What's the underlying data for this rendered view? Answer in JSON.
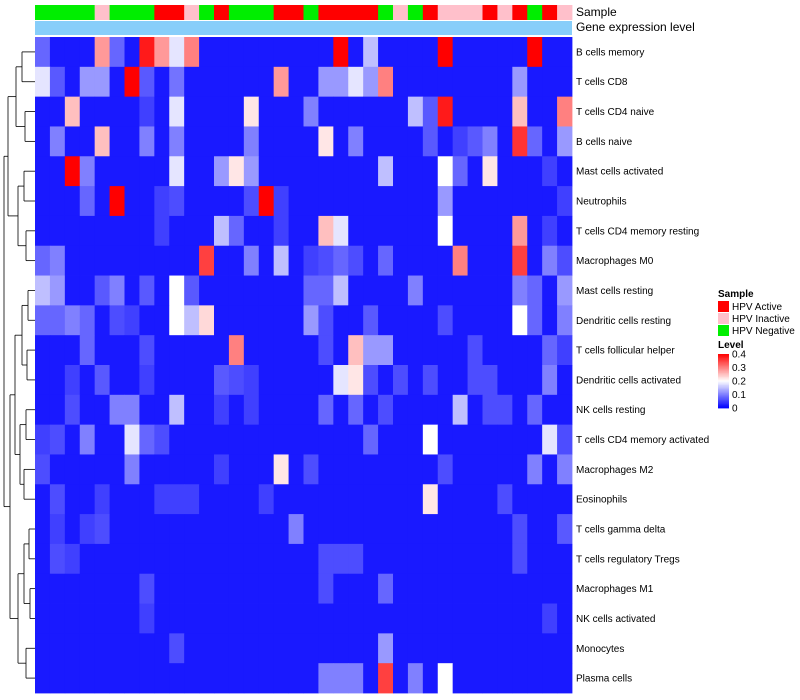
{
  "chart_data": {
    "type": "heatmap",
    "annotation_labels": [
      "Sample",
      "Gene expression level"
    ],
    "rows": [
      "B cells memory",
      "T cells CD8",
      "T cells CD4 naive",
      "B cells naive",
      "Mast cells activated",
      "Neutrophils",
      "T cells CD4 memory resting",
      "Macrophages M0",
      "Mast cells resting",
      "Dendritic cells resting",
      "T cells follicular helper",
      "Dendritic cells activated",
      "NK cells resting",
      "T cells CD4 memory activated",
      "Macrophages M2",
      "Eosinophils",
      "T cells gamma delta",
      "T cells regulatory  Tregs",
      "Macrophages M1",
      "NK cells activated",
      "Monocytes",
      "Plasma cells"
    ],
    "sample_groups": [
      "N",
      "N",
      "N",
      "N",
      "I",
      "N",
      "N",
      "N",
      "A",
      "A",
      "I",
      "N",
      "A",
      "N",
      "N",
      "N",
      "A",
      "A",
      "N",
      "A",
      "A",
      "A",
      "A",
      "N",
      "I",
      "N",
      "A",
      "I",
      "I",
      "I",
      "A",
      "I",
      "A",
      "N",
      "A",
      "I"
    ],
    "values": [
      [
        0.08,
        0.02,
        0.02,
        0.02,
        0.28,
        0.08,
        0.02,
        0.38,
        0.28,
        0.18,
        0.3,
        0.02,
        0.02,
        0.02,
        0.02,
        0.02,
        0.02,
        0.02,
        0.02,
        0.02,
        0.4,
        0.02,
        0.15,
        0.02,
        0.02,
        0.02,
        0.02,
        0.4,
        0.02,
        0.02,
        0.02,
        0.02,
        0.02,
        0.4,
        0.02,
        0.02
      ],
      [
        0.18,
        0.07,
        0.02,
        0.12,
        0.12,
        0.02,
        0.4,
        0.07,
        0.02,
        0.09,
        0.02,
        0.02,
        0.02,
        0.02,
        0.02,
        0.02,
        0.28,
        0.02,
        0.02,
        0.12,
        0.12,
        0.18,
        0.12,
        0.3,
        0.02,
        0.02,
        0.02,
        0.02,
        0.02,
        0.02,
        0.02,
        0.02,
        0.12,
        0.02,
        0.02,
        0.02
      ],
      [
        0.02,
        0.02,
        0.25,
        0.02,
        0.02,
        0.02,
        0.02,
        0.05,
        0.02,
        0.18,
        0.02,
        0.02,
        0.02,
        0.02,
        0.22,
        0.02,
        0.02,
        0.02,
        0.1,
        0.02,
        0.02,
        0.02,
        0.02,
        0.02,
        0.02,
        0.15,
        0.07,
        0.38,
        0.02,
        0.02,
        0.02,
        0.02,
        0.25,
        0.02,
        0.02,
        0.3
      ],
      [
        0.02,
        0.1,
        0.02,
        0.02,
        0.25,
        0.02,
        0.02,
        0.1,
        0.02,
        0.1,
        0.02,
        0.02,
        0.02,
        0.02,
        0.1,
        0.02,
        0.02,
        0.02,
        0.02,
        0.22,
        0.02,
        0.1,
        0.02,
        0.02,
        0.02,
        0.02,
        0.07,
        0.02,
        0.05,
        0.07,
        0.1,
        0.02,
        0.36,
        0.08,
        0.02,
        0.12
      ],
      [
        0.02,
        0.02,
        0.4,
        0.1,
        0.02,
        0.02,
        0.02,
        0.02,
        0.02,
        0.18,
        0.02,
        0.02,
        0.12,
        0.22,
        0.12,
        0.02,
        0.02,
        0.02,
        0.02,
        0.02,
        0.02,
        0.02,
        0.02,
        0.15,
        0.02,
        0.02,
        0.02,
        0.2,
        0.08,
        0.02,
        0.22,
        0.02,
        0.02,
        0.02,
        0.05,
        0.02
      ],
      [
        0.02,
        0.02,
        0.02,
        0.08,
        0.02,
        0.4,
        0.02,
        0.02,
        0.05,
        0.06,
        0.02,
        0.02,
        0.02,
        0.02,
        0.06,
        0.4,
        0.05,
        0.02,
        0.02,
        0.02,
        0.02,
        0.02,
        0.02,
        0.02,
        0.02,
        0.02,
        0.02,
        0.12,
        0.02,
        0.02,
        0.02,
        0.02,
        0.02,
        0.02,
        0.02,
        0.05
      ],
      [
        0.02,
        0.02,
        0.02,
        0.02,
        0.02,
        0.02,
        0.02,
        0.02,
        0.05,
        0.02,
        0.02,
        0.02,
        0.15,
        0.08,
        0.02,
        0.02,
        0.05,
        0.02,
        0.02,
        0.25,
        0.18,
        0.02,
        0.02,
        0.02,
        0.02,
        0.02,
        0.02,
        0.2,
        0.02,
        0.02,
        0.02,
        0.02,
        0.28,
        0.02,
        0.05,
        0.02
      ],
      [
        0.08,
        0.1,
        0.02,
        0.02,
        0.02,
        0.02,
        0.02,
        0.02,
        0.02,
        0.02,
        0.02,
        0.35,
        0.02,
        0.02,
        0.1,
        0.02,
        0.15,
        0.02,
        0.05,
        0.06,
        0.08,
        0.06,
        0.02,
        0.08,
        0.02,
        0.02,
        0.02,
        0.02,
        0.3,
        0.02,
        0.02,
        0.02,
        0.35,
        0.02,
        0.1,
        0.06
      ],
      [
        0.15,
        0.12,
        0.02,
        0.02,
        0.07,
        0.1,
        0.02,
        0.07,
        0.02,
        0.2,
        0.07,
        0.02,
        0.02,
        0.02,
        0.02,
        0.02,
        0.02,
        0.02,
        0.08,
        0.08,
        0.15,
        0.02,
        0.02,
        0.02,
        0.02,
        0.1,
        0.02,
        0.02,
        0.02,
        0.02,
        0.02,
        0.02,
        0.1,
        0.08,
        0.02,
        0.12
      ],
      [
        0.08,
        0.08,
        0.1,
        0.08,
        0.02,
        0.06,
        0.05,
        0.02,
        0.02,
        0.2,
        0.15,
        0.23,
        0.02,
        0.02,
        0.02,
        0.02,
        0.02,
        0.02,
        0.12,
        0.06,
        0.02,
        0.02,
        0.07,
        0.02,
        0.02,
        0.02,
        0.02,
        0.06,
        0.02,
        0.02,
        0.02,
        0.02,
        0.2,
        0.08,
        0.02,
        0.1
      ],
      [
        0.02,
        0.02,
        0.02,
        0.08,
        0.02,
        0.02,
        0.02,
        0.06,
        0.02,
        0.02,
        0.02,
        0.02,
        0.02,
        0.3,
        0.02,
        0.02,
        0.02,
        0.02,
        0.02,
        0.06,
        0.02,
        0.25,
        0.12,
        0.12,
        0.02,
        0.02,
        0.02,
        0.02,
        0.02,
        0.06,
        0.02,
        0.02,
        0.02,
        0.02,
        0.08,
        0.05
      ],
      [
        0.02,
        0.02,
        0.05,
        0.02,
        0.07,
        0.02,
        0.02,
        0.05,
        0.02,
        0.02,
        0.02,
        0.02,
        0.07,
        0.06,
        0.05,
        0.02,
        0.02,
        0.02,
        0.02,
        0.02,
        0.18,
        0.22,
        0.06,
        0.02,
        0.06,
        0.02,
        0.06,
        0.02,
        0.02,
        0.06,
        0.06,
        0.02,
        0.02,
        0.02,
        0.1,
        0.02
      ],
      [
        0.02,
        0.02,
        0.06,
        0.02,
        0.02,
        0.1,
        0.1,
        0.02,
        0.02,
        0.15,
        0.02,
        0.02,
        0.05,
        0.02,
        0.05,
        0.02,
        0.02,
        0.02,
        0.02,
        0.08,
        0.02,
        0.08,
        0.02,
        0.06,
        0.02,
        0.02,
        0.02,
        0.02,
        0.15,
        0.02,
        0.06,
        0.06,
        0.02,
        0.08,
        0.02,
        0.02
      ],
      [
        0.05,
        0.06,
        0.02,
        0.1,
        0.02,
        0.02,
        0.18,
        0.08,
        0.06,
        0.02,
        0.02,
        0.02,
        0.02,
        0.02,
        0.02,
        0.02,
        0.02,
        0.02,
        0.02,
        0.02,
        0.02,
        0.02,
        0.08,
        0.02,
        0.02,
        0.02,
        0.2,
        0.02,
        0.02,
        0.02,
        0.02,
        0.02,
        0.02,
        0.02,
        0.18,
        0.06
      ],
      [
        0.06,
        0.02,
        0.02,
        0.02,
        0.02,
        0.02,
        0.1,
        0.02,
        0.02,
        0.02,
        0.02,
        0.02,
        0.05,
        0.02,
        0.02,
        0.02,
        0.22,
        0.02,
        0.06,
        0.02,
        0.02,
        0.02,
        0.02,
        0.02,
        0.02,
        0.02,
        0.02,
        0.06,
        0.02,
        0.02,
        0.02,
        0.02,
        0.02,
        0.1,
        0.02,
        0.1
      ],
      [
        0.02,
        0.06,
        0.02,
        0.02,
        0.05,
        0.02,
        0.02,
        0.02,
        0.05,
        0.05,
        0.05,
        0.02,
        0.02,
        0.02,
        0.02,
        0.05,
        0.02,
        0.02,
        0.02,
        0.02,
        0.02,
        0.02,
        0.02,
        0.02,
        0.02,
        0.02,
        0.22,
        0.02,
        0.02,
        0.02,
        0.02,
        0.06,
        0.02,
        0.02,
        0.02,
        0.02
      ],
      [
        0.02,
        0.05,
        0.02,
        0.05,
        0.06,
        0.02,
        0.02,
        0.02,
        0.02,
        0.02,
        0.02,
        0.02,
        0.02,
        0.02,
        0.02,
        0.02,
        0.02,
        0.1,
        0.02,
        0.02,
        0.02,
        0.02,
        0.02,
        0.02,
        0.02,
        0.02,
        0.02,
        0.02,
        0.02,
        0.02,
        0.02,
        0.02,
        0.06,
        0.02,
        0.02,
        0.07
      ],
      [
        0.02,
        0.06,
        0.05,
        0.02,
        0.02,
        0.02,
        0.02,
        0.02,
        0.02,
        0.02,
        0.02,
        0.02,
        0.02,
        0.02,
        0.02,
        0.02,
        0.02,
        0.02,
        0.02,
        0.06,
        0.06,
        0.06,
        0.02,
        0.02,
        0.02,
        0.02,
        0.02,
        0.02,
        0.02,
        0.02,
        0.02,
        0.02,
        0.06,
        0.02,
        0.02,
        0.02
      ],
      [
        0.02,
        0.02,
        0.02,
        0.02,
        0.02,
        0.02,
        0.02,
        0.06,
        0.02,
        0.02,
        0.02,
        0.02,
        0.02,
        0.02,
        0.02,
        0.02,
        0.02,
        0.02,
        0.02,
        0.06,
        0.02,
        0.02,
        0.02,
        0.08,
        0.02,
        0.02,
        0.02,
        0.02,
        0.02,
        0.02,
        0.02,
        0.02,
        0.02,
        0.02,
        0.02,
        0.02
      ],
      [
        0.02,
        0.02,
        0.02,
        0.02,
        0.02,
        0.02,
        0.02,
        0.05,
        0.02,
        0.02,
        0.02,
        0.02,
        0.02,
        0.02,
        0.02,
        0.02,
        0.02,
        0.02,
        0.02,
        0.02,
        0.02,
        0.02,
        0.02,
        0.02,
        0.02,
        0.02,
        0.02,
        0.02,
        0.02,
        0.02,
        0.02,
        0.02,
        0.02,
        0.02,
        0.05,
        0.02
      ],
      [
        0.02,
        0.02,
        0.02,
        0.02,
        0.02,
        0.02,
        0.02,
        0.02,
        0.02,
        0.06,
        0.02,
        0.02,
        0.02,
        0.02,
        0.02,
        0.02,
        0.02,
        0.02,
        0.02,
        0.02,
        0.02,
        0.02,
        0.02,
        0.12,
        0.02,
        0.02,
        0.02,
        0.02,
        0.02,
        0.02,
        0.02,
        0.02,
        0.02,
        0.02,
        0.02,
        0.02
      ],
      [
        0.02,
        0.02,
        0.02,
        0.02,
        0.02,
        0.02,
        0.02,
        0.02,
        0.02,
        0.02,
        0.02,
        0.02,
        0.02,
        0.02,
        0.02,
        0.02,
        0.02,
        0.02,
        0.02,
        0.1,
        0.1,
        0.1,
        0.02,
        0.35,
        0.02,
        0.1,
        0.02,
        0.2,
        0.02,
        0.02,
        0.02,
        0.02,
        0.02,
        0.02,
        0.02,
        0.02
      ]
    ],
    "level_range": [
      0,
      0.4
    ],
    "legend": {
      "sample_title": "Sample",
      "sample_entries": [
        {
          "key": "A",
          "label": "HPV Active",
          "color": "#ff0000"
        },
        {
          "key": "I",
          "label": "HPV Inactive",
          "color": "#ffc0cb"
        },
        {
          "key": "N",
          "label": "HPV Negative",
          "color": "#00ee00"
        }
      ],
      "level_title": "Level",
      "level_ticks": [
        {
          "value": 0.4,
          "label": "0.4"
        },
        {
          "value": 0.3,
          "label": "0.3"
        },
        {
          "value": 0.2,
          "label": "0.2"
        },
        {
          "value": 0.1,
          "label": "0.1"
        },
        {
          "value": 0,
          "label": "0"
        }
      ],
      "placement": "right"
    },
    "colors": {
      "low": "#0000ff",
      "mid": "#ffffff",
      "high": "#ff0000",
      "expression_bar": "#87cefa"
    },
    "dendrogram": "rows"
  }
}
